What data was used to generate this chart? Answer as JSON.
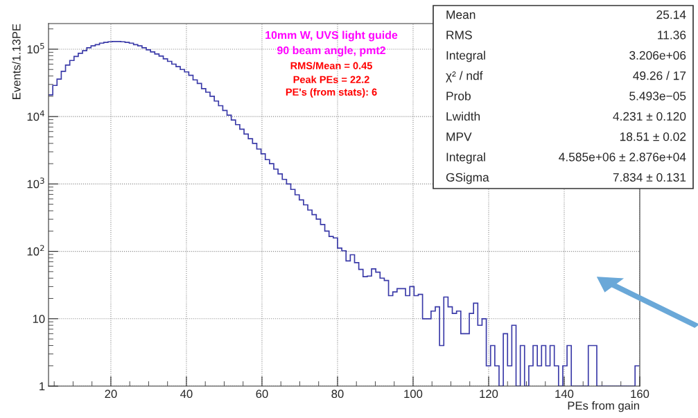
{
  "chart_data": {
    "type": "histogram",
    "xlabel": "PEs from gain",
    "ylabel": "Events/1.13PE",
    "bins": [
      3.5,
      4.625,
      5.75,
      6.875,
      8,
      9.125,
      10.25,
      11.375,
      12.5,
      13.625,
      14.75,
      15.875,
      17,
      18.125,
      19.25,
      20.375,
      21.5,
      22.625,
      23.75,
      24.875,
      26,
      27.125,
      28.25,
      29.375,
      30.5,
      31.625,
      32.75,
      33.875,
      35,
      36.125,
      37.25,
      38.375,
      39.5,
      40.625,
      41.75,
      42.875,
      44,
      45.125,
      46.25,
      47.375,
      48.5,
      49.625,
      50.75,
      51.875,
      53,
      54.125,
      55.25,
      56.375,
      57.5,
      58.625,
      59.75,
      60.875,
      62,
      63.125,
      64.25,
      65.375,
      66.5,
      67.625,
      68.75,
      69.875,
      71,
      72.125,
      73.25,
      74.375,
      75.5,
      76.625,
      77.75,
      78.875,
      80,
      81.125,
      82.25,
      83.375,
      84.5,
      85.625,
      86.75,
      87.875,
      89,
      90.125,
      91.25,
      92.375,
      93.5,
      94.625,
      95.75,
      96.875,
      98,
      99.125,
      100.25,
      101.375,
      102.5,
      103.625,
      104.75,
      105.875,
      107,
      108.125,
      109.25,
      110.375,
      111.5,
      112.625,
      113.75,
      114.875,
      116,
      117.125,
      118.25,
      119.375,
      120.5,
      121.625,
      122.75,
      123.875,
      125,
      126.125,
      127.25,
      128.375,
      129.5,
      130.625,
      131.75,
      132.875,
      134,
      135.125,
      136.25,
      137.375,
      138.5,
      139.625,
      140.75,
      141.875,
      143,
      144.125,
      145.25,
      146.375,
      147.5,
      148.625,
      149.75,
      150.875,
      152,
      153.125,
      154.25,
      155.375,
      156.5,
      157.625,
      158.75,
      159.875
    ],
    "values": [
      21000,
      29000,
      36000,
      47000,
      58000,
      68000,
      78000,
      87000,
      95000,
      105000,
      112000,
      117000,
      123000,
      126000,
      129000,
      130000,
      130000,
      129000,
      126000,
      123000,
      117000,
      112000,
      105000,
      98000,
      91000,
      85000,
      79000,
      72000,
      66000,
      60000,
      55000,
      50000,
      46000,
      41000,
      35000,
      31000,
      26000,
      23000,
      20000,
      17000,
      14500,
      12300,
      10500,
      8900,
      7600,
      6500,
      5500,
      4700,
      4000,
      3300,
      2800,
      2300,
      2000,
      1660,
      1410,
      1170,
      1000,
      830,
      690,
      580,
      490,
      410,
      350,
      300,
      250,
      200,
      166,
      158,
      112,
      102,
      72,
      89,
      68,
      54,
      42,
      43,
      55,
      49,
      40,
      37,
      22,
      25,
      28,
      28,
      22,
      30,
      22,
      23,
      10,
      10,
      13,
      15,
      4,
      21,
      15,
      12,
      13,
      6,
      6,
      12,
      17,
      8,
      10,
      2,
      4,
      2,
      1,
      6,
      2,
      8,
      1,
      4,
      1,
      2,
      4,
      2,
      4,
      2,
      4,
      2,
      1,
      2,
      4,
      1,
      1,
      1,
      1,
      4,
      4,
      1,
      1,
      1,
      1,
      1,
      1,
      1,
      1,
      1,
      2
    ],
    "color": "#3a3aa8",
    "log": "y",
    "xlim": [
      3.5,
      160
    ],
    "xticks": [
      20,
      40,
      60,
      80,
      100,
      120,
      140,
      160
    ],
    "ylim": [
      1,
      240000
    ],
    "yticks": [
      1,
      10,
      {
        "value": 100,
        "label": "10$^{2}$"
      },
      {
        "value": 1000,
        "label": "10$^{3}$"
      },
      {
        "value": 10000,
        "label": "10$^{4}$"
      },
      {
        "value": 100000,
        "label": "10$^{5}$"
      }
    ],
    "grid": true,
    "annotations": [
      "10mm W, UVS light guide",
      "90 beam angle, pmt2",
      "RMS/Mean = 0.45",
      "Peak PEs = 22.2",
      "PE's (from stats): 6",
      "Mean",
      "25.14",
      "RMS",
      "11.36",
      "Integral",
      "3.206e+06",
      "χ² / ndf",
      "49.26 / 17",
      "Prob",
      "5.493e−05",
      "Lwidth",
      "4.231 ± 0.120",
      "MPV",
      "18.51 ± 0.02",
      "Integral",
      "4.585e+06 ± 2.876e+04",
      "GSigma",
      "7.834 ± 0.131"
    ]
  }
}
